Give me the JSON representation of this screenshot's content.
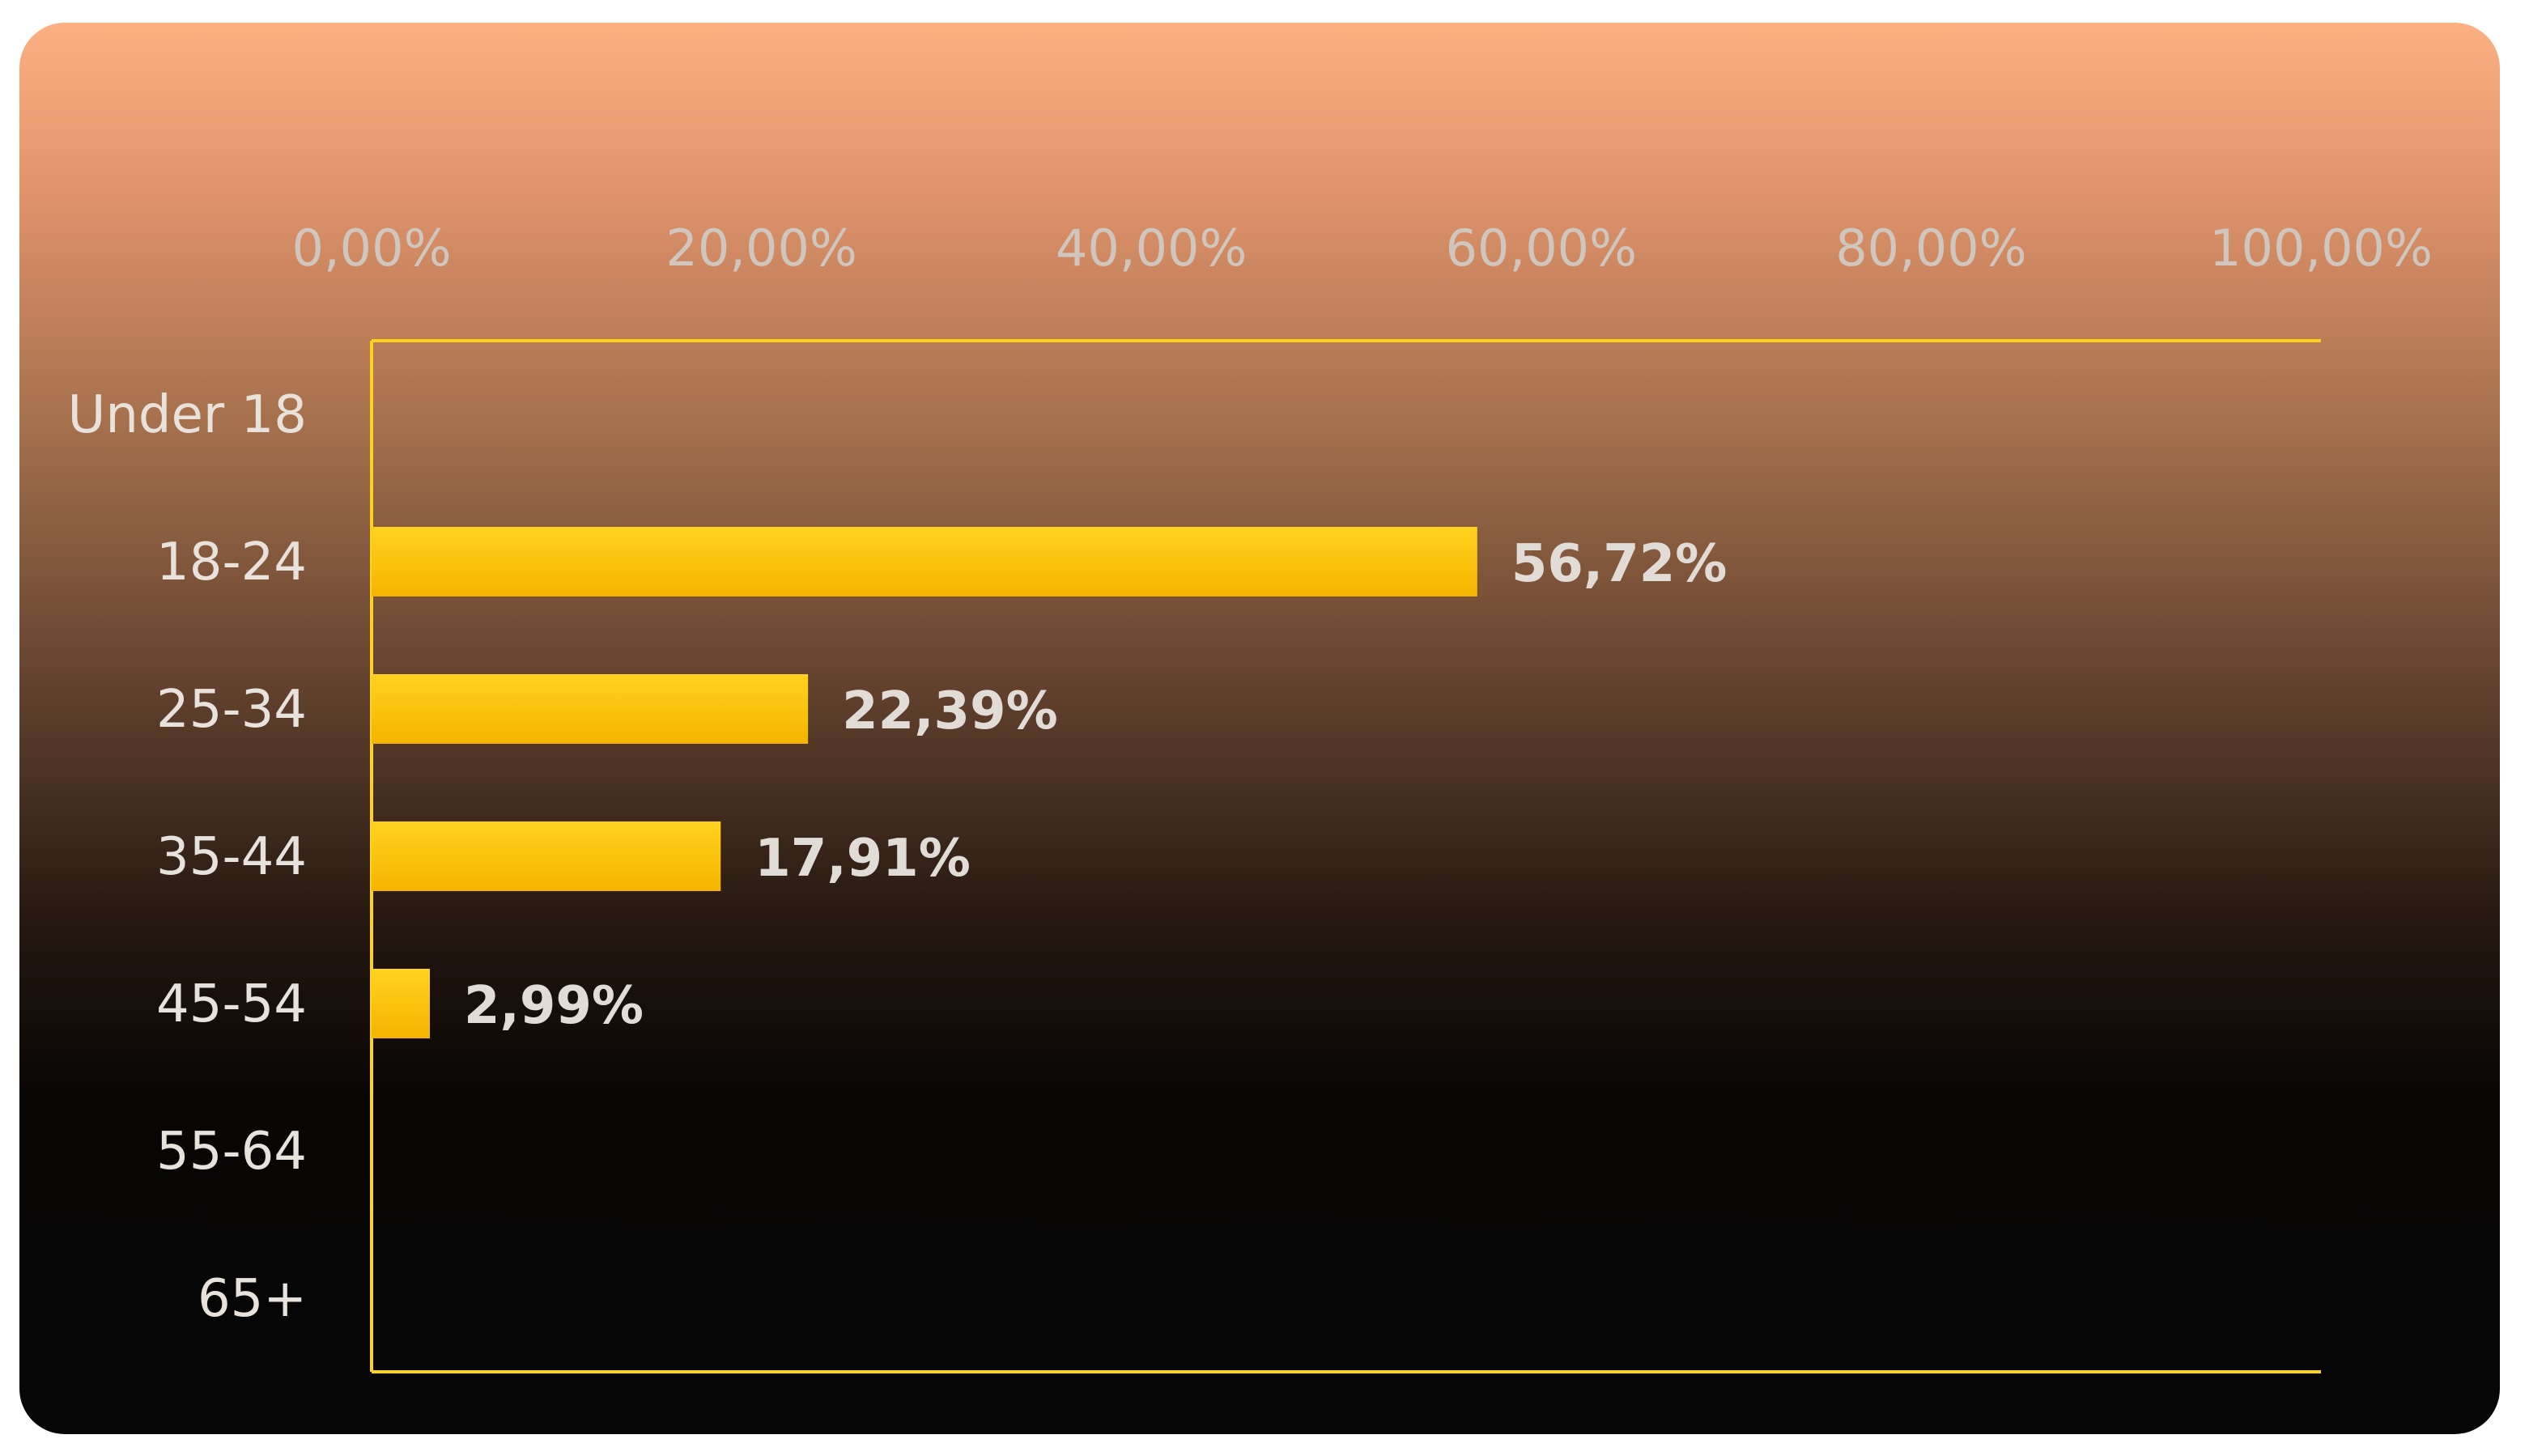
{
  "chart_data": {
    "type": "bar",
    "orientation": "horizontal",
    "categories": [
      "Under 18",
      "18-24",
      "25-34",
      "35-44",
      "45-54",
      "55-64",
      "65+"
    ],
    "values": [
      0,
      56.72,
      22.39,
      17.91,
      2.99,
      0,
      0
    ],
    "value_labels": [
      "",
      "56,72%",
      "22,39%",
      "17,91%",
      "2,99%",
      "",
      ""
    ],
    "xlim": [
      0,
      100
    ],
    "x_ticks": [
      0,
      20,
      40,
      60,
      80,
      100
    ],
    "x_tick_labels": [
      "0,00%",
      "20,00%",
      "40,00%",
      "60,00%",
      "80,00%",
      "100,00%"
    ],
    "x_axis_position": "top",
    "grid": true,
    "legend": "none",
    "title": "",
    "xlabel": "",
    "ylabel": ""
  },
  "colors": {
    "bar": "#ffc400",
    "grid": "#ffd21a",
    "background_top": "#fdb082",
    "background_bottom": "#060606"
  }
}
